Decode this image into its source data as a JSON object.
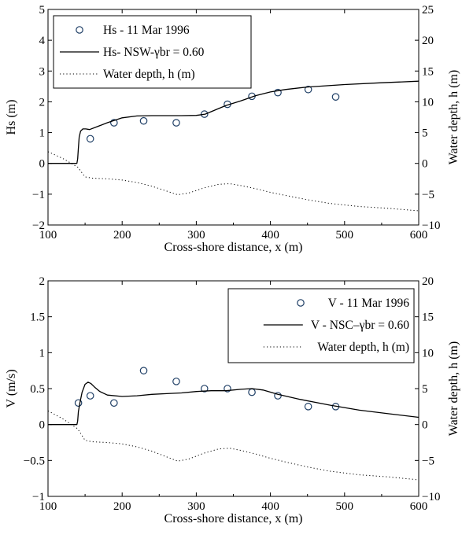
{
  "chart_data": [
    {
      "type": "line",
      "xlabel": "Cross-shore distance, x (m)",
      "ylabel": "Hs (m)",
      "y2label": "Water depth, h (m)",
      "xlim": [
        100,
        600
      ],
      "ylim": [
        -2,
        5
      ],
      "y2lim": [
        -10,
        25
      ],
      "xticks": [
        100,
        200,
        300,
        400,
        500,
        600
      ],
      "yticks": [
        -2,
        -1,
        0,
        1,
        2,
        3,
        4,
        5
      ],
      "y2ticks": [
        -10,
        -5,
        0,
        5,
        10,
        15,
        20,
        25
      ],
      "xtick_labels": [
        "100",
        "200",
        "300",
        "400",
        "500",
        "600"
      ],
      "ytick_labels": [
        "−2",
        "−1",
        "0",
        "1",
        "2",
        "3",
        "4",
        "5"
      ],
      "y2tick_labels": [
        "−10",
        "−5",
        "0",
        "5",
        "10",
        "15",
        "20",
        "25"
      ],
      "grid": false,
      "legend_position": "top-left",
      "series": [
        {
          "name": "Hs - 11 Mar 1996",
          "kind": "markers",
          "axis": "left",
          "x": [
            157,
            189,
            229,
            273,
            311,
            342,
            375,
            410,
            451,
            488
          ],
          "y": [
            0.8,
            1.32,
            1.38,
            1.32,
            1.6,
            1.92,
            2.18,
            2.3,
            2.4,
            2.16
          ]
        },
        {
          "name": "Hs- NSW-γbr = 0.60",
          "kind": "solid",
          "axis": "left",
          "x": [
            100,
            139,
            140,
            141,
            142,
            144,
            147,
            151,
            156,
            165,
            180,
            200,
            220,
            240,
            260,
            280,
            300,
            312,
            320,
            330,
            340,
            360,
            380,
            400,
            420,
            450,
            500,
            550,
            600
          ],
          "y": [
            0,
            0,
            0.15,
            0.5,
            0.85,
            1.05,
            1.12,
            1.12,
            1.1,
            1.18,
            1.32,
            1.48,
            1.54,
            1.55,
            1.55,
            1.55,
            1.56,
            1.6,
            1.68,
            1.78,
            1.88,
            2.03,
            2.2,
            2.32,
            2.4,
            2.48,
            2.56,
            2.62,
            2.67
          ]
        },
        {
          "name": "Water depth, h (m)",
          "kind": "dotted",
          "axis": "right",
          "x": [
            100,
            120,
            140,
            150,
            160,
            180,
            200,
            220,
            240,
            260,
            275,
            290,
            310,
            330,
            345,
            360,
            380,
            400,
            420,
            450,
            480,
            520,
            560,
            600
          ],
          "y": [
            1.9,
            0.8,
            -0.6,
            -2.2,
            -2.4,
            -2.5,
            -2.7,
            -3.1,
            -3.7,
            -4.5,
            -5.1,
            -4.8,
            -4.0,
            -3.4,
            -3.3,
            -3.6,
            -4.1,
            -4.7,
            -5.2,
            -5.9,
            -6.5,
            -7.0,
            -7.3,
            -7.7
          ]
        }
      ]
    },
    {
      "type": "line",
      "xlabel": "Cross-shore distance, x (m)",
      "ylabel": "V (m/s)",
      "y2label": "Water depth, h (m)",
      "xlim": [
        100,
        600
      ],
      "ylim": [
        -1,
        2
      ],
      "y2lim": [
        -10,
        20
      ],
      "xticks": [
        100,
        200,
        300,
        400,
        500,
        600
      ],
      "yticks": [
        -1,
        -0.5,
        0,
        0.5,
        1,
        1.5,
        2
      ],
      "y2ticks": [
        -10,
        -5,
        0,
        5,
        10,
        15,
        20
      ],
      "xtick_labels": [
        "100",
        "200",
        "300",
        "400",
        "500",
        "600"
      ],
      "ytick_labels": [
        "−1",
        "−0.5",
        "0",
        "0.5",
        "1",
        "1.5",
        "2"
      ],
      "y2tick_labels": [
        "−10",
        "−5",
        "0",
        "5",
        "10",
        "15",
        "20"
      ],
      "grid": false,
      "legend_position": "top-right",
      "series": [
        {
          "name": "V - 11 Mar 1996",
          "kind": "markers",
          "axis": "left",
          "x": [
            141,
            157,
            189,
            229,
            273,
            311,
            342,
            375,
            410,
            451,
            488
          ],
          "y": [
            0.3,
            0.4,
            0.3,
            0.75,
            0.6,
            0.5,
            0.5,
            0.45,
            0.4,
            0.25,
            0.25
          ]
        },
        {
          "name": "V - NSC–γbr = 0.60",
          "kind": "solid",
          "axis": "left",
          "x": [
            100,
            139,
            140,
            141,
            143,
            146,
            150,
            154,
            158,
            163,
            170,
            180,
            200,
            220,
            240,
            260,
            280,
            300,
            320,
            340,
            360,
            375,
            390,
            410,
            440,
            480,
            520,
            560,
            600
          ],
          "y": [
            0,
            0,
            0.05,
            0.18,
            0.3,
            0.45,
            0.56,
            0.59,
            0.57,
            0.52,
            0.46,
            0.41,
            0.39,
            0.4,
            0.42,
            0.43,
            0.44,
            0.46,
            0.47,
            0.47,
            0.49,
            0.5,
            0.48,
            0.42,
            0.35,
            0.27,
            0.2,
            0.15,
            0.1
          ]
        },
        {
          "name": "Water depth, h (m)",
          "kind": "dotted",
          "axis": "right",
          "x": [
            100,
            120,
            140,
            150,
            160,
            180,
            200,
            220,
            240,
            260,
            275,
            290,
            310,
            330,
            345,
            360,
            380,
            400,
            420,
            450,
            480,
            520,
            560,
            600
          ],
          "y": [
            1.9,
            0.8,
            -0.6,
            -2.2,
            -2.4,
            -2.5,
            -2.7,
            -3.1,
            -3.7,
            -4.5,
            -5.1,
            -4.8,
            -4.0,
            -3.4,
            -3.3,
            -3.6,
            -4.1,
            -4.7,
            -5.2,
            -5.9,
            -6.5,
            -7.0,
            -7.3,
            -7.7
          ]
        }
      ]
    }
  ]
}
